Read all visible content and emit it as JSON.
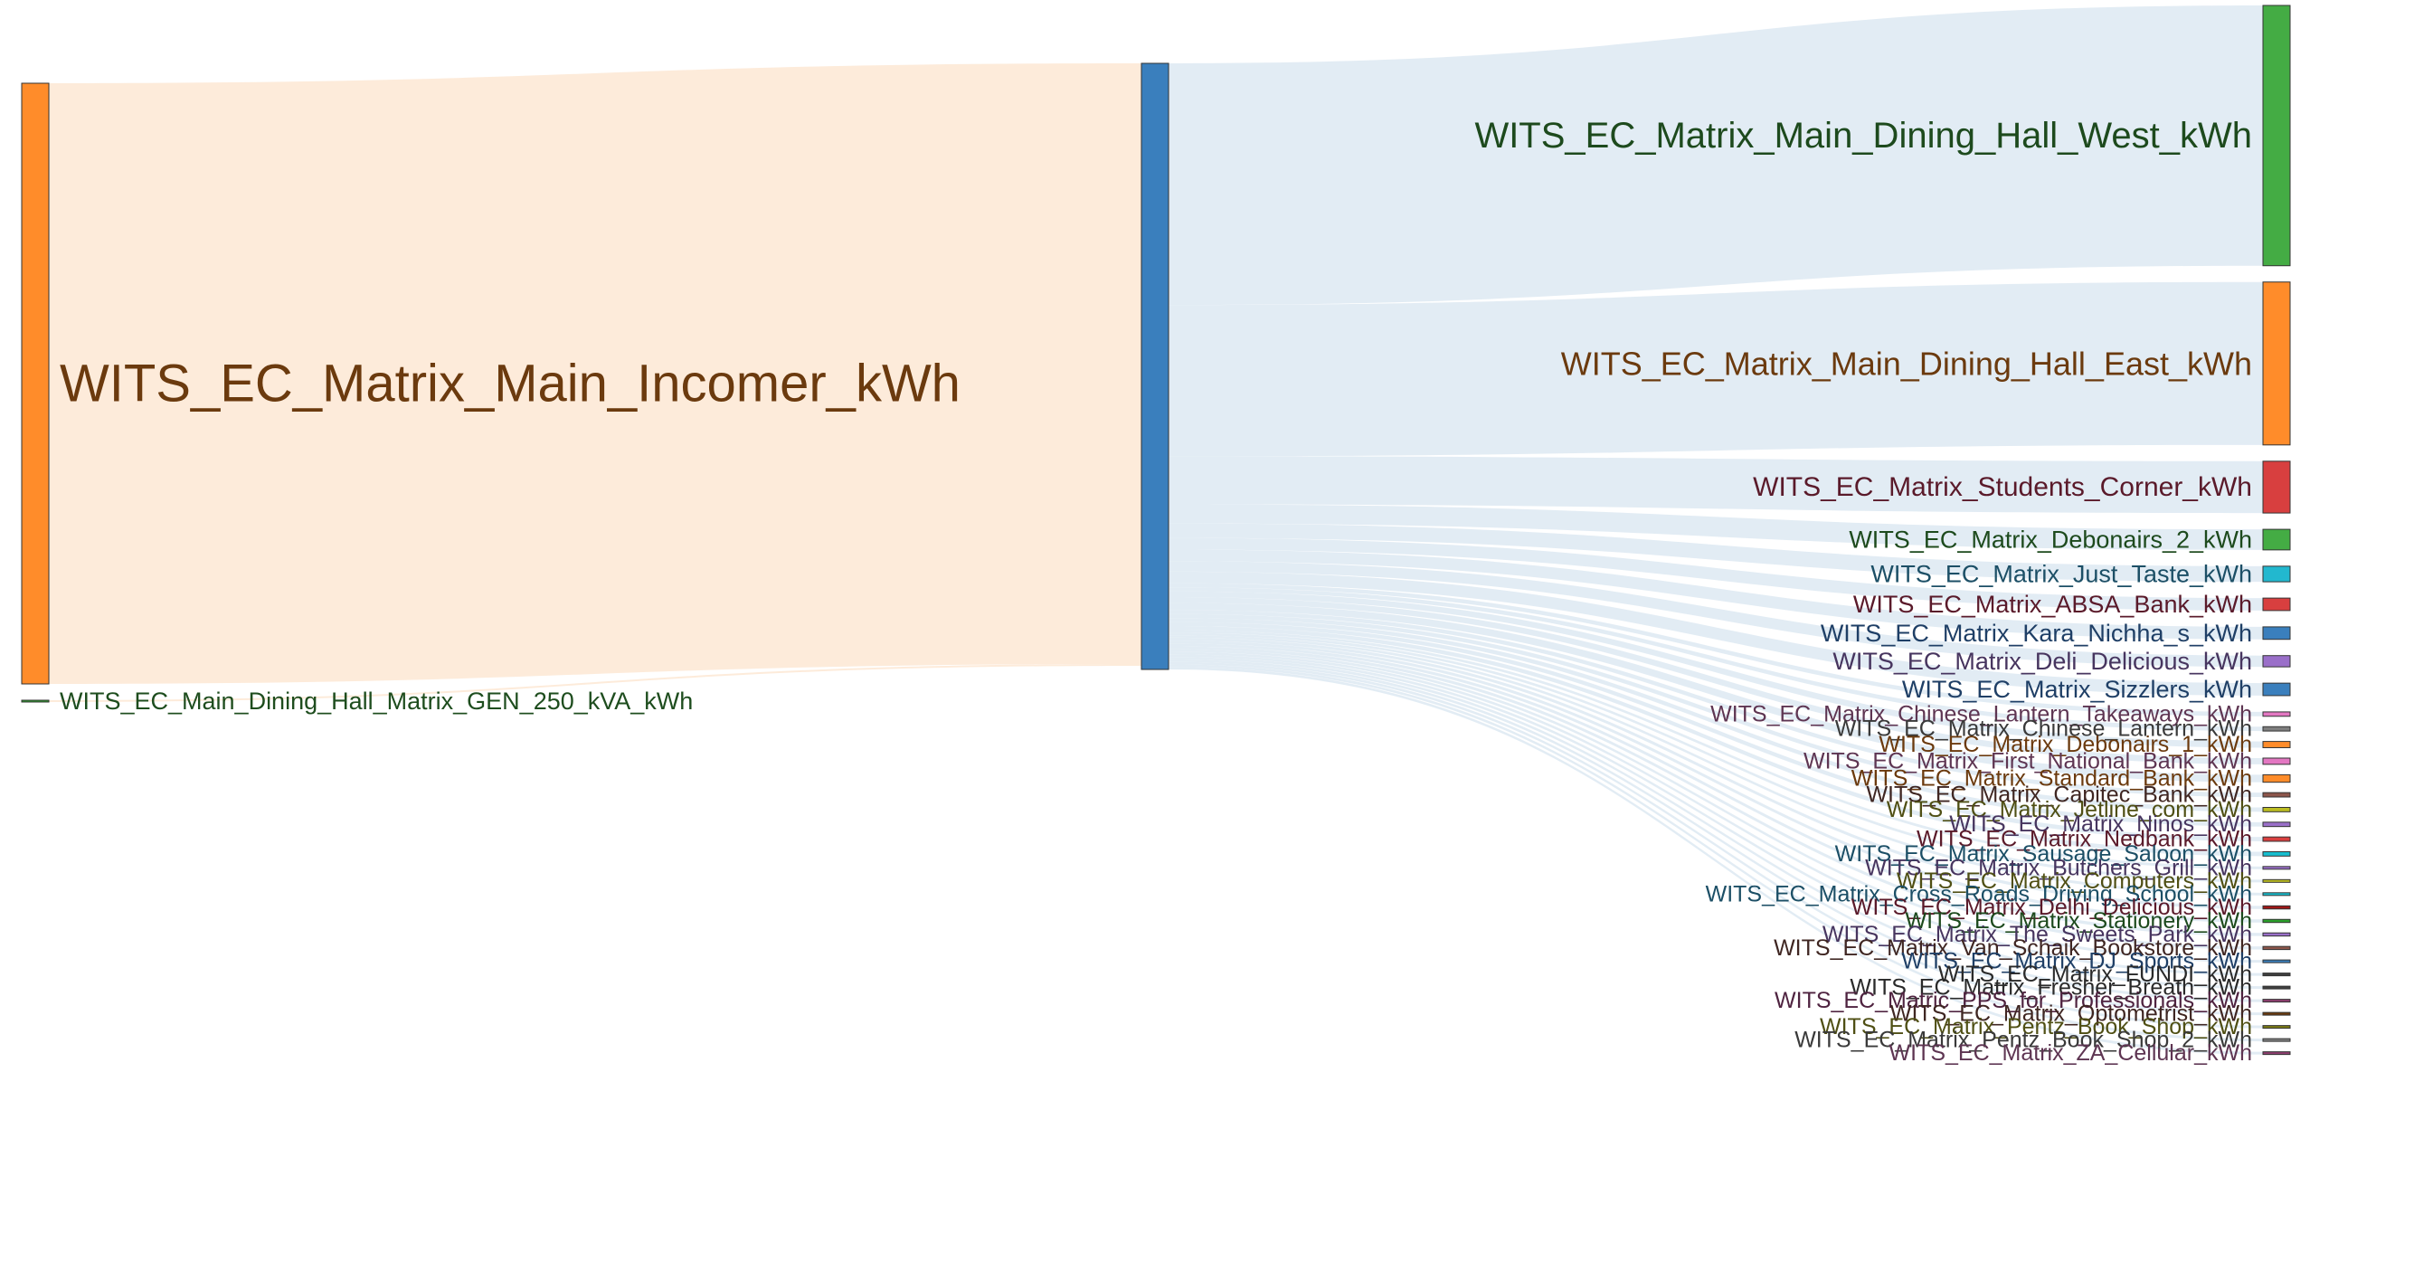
{
  "chart_data": {
    "type": "sankey",
    "sources": [
      {
        "id": "main_incomer",
        "label": "WITS_EC_Matrix_Main_Incomer_kWh",
        "value": 1000,
        "color": "#ff8c2a",
        "text_color": "#6b3a0e"
      },
      {
        "id": "gen_250",
        "label": "WITS_EC_Main_Dining_Hall_Matrix_GEN_250_kVA_kWh",
        "value": 3,
        "color": "#2ca02c",
        "text_color": "#1e4d1e"
      }
    ],
    "hub": {
      "id": "matrix_hub",
      "label": "",
      "color": "#3a7fbd"
    },
    "targets": [
      {
        "label": "WITS_EC_Matrix_Main_Dining_Hall_West_kWh",
        "value": 417,
        "color": "#44ac44",
        "text_color": "#1d4a1d"
      },
      {
        "label": "WITS_EC_Matrix_Main_Dining_Hall_East_kWh",
        "value": 261,
        "color": "#ff8c2a",
        "text_color": "#6b3a0e"
      },
      {
        "label": "WITS_EC_Matrix_Students_Corner_kWh",
        "value": 83,
        "color": "#d83f3f",
        "text_color": "#5a1a2a"
      },
      {
        "label": "WITS_EC_Matrix_Debonairs_2_kWh",
        "value": 33,
        "color": "#44ac44",
        "text_color": "#1d4a1d"
      },
      {
        "label": "WITS_EC_Matrix_Just_Taste_kWh",
        "value": 25,
        "color": "#22b8cf",
        "text_color": "#1c4f66"
      },
      {
        "label": "WITS_EC_Matrix_ABSA_Bank_kWh",
        "value": 20,
        "color": "#d83f3f",
        "text_color": "#5a1a2a"
      },
      {
        "label": "WITS_EC_Matrix_Kara_Nichha_s_kWh",
        "value": 20,
        "color": "#3a7fbd",
        "text_color": "#1f3f66"
      },
      {
        "label": "WITS_EC_Matrix_Deli_Delicious_kWh",
        "value": 18,
        "color": "#9a6fc9",
        "text_color": "#47355f"
      },
      {
        "label": "WITS_EC_Matrix_Sizzlers_kWh",
        "value": 20,
        "color": "#3a7fbd",
        "text_color": "#1f3f66"
      },
      {
        "label": "WITS_EC_Matrix_Chinese_Lantern_Takeaways_kWh",
        "value": 7,
        "color": "#e377c2",
        "text_color": "#5e3552"
      },
      {
        "label": "WITS_EC_Matrix_Chinese_Lantern_kWh",
        "value": 7,
        "color": "#7f7f7f",
        "text_color": "#3a3a3a"
      },
      {
        "label": "WITS_EC_Matrix_Debonairs_1_kWh",
        "value": 10,
        "color": "#ff8c2a",
        "text_color": "#6b3a0e"
      },
      {
        "label": "WITS_EC_Matrix_First_National_Bank_kWh",
        "value": 10,
        "color": "#e377c2",
        "text_color": "#5e3552"
      },
      {
        "label": "WITS_EC_Matrix_Standard_Bank_kWh",
        "value": 12,
        "color": "#ff8c2a",
        "text_color": "#6b3a0e"
      },
      {
        "label": "WITS_EC_Matrix_Capitec_Bank_kWh",
        "value": 7,
        "color": "#8c564b",
        "text_color": "#3f2622"
      },
      {
        "label": "WITS_EC_Matrix_Jetline_com_kWh",
        "value": 7,
        "color": "#bcbd22",
        "text_color": "#4f4f14"
      },
      {
        "label": "WITS_EC_Matrix_Ninos_kWh",
        "value": 7,
        "color": "#9a6fc9",
        "text_color": "#47355f"
      },
      {
        "label": "WITS_EC_Matrix_Nedbank_kWh",
        "value": 7,
        "color": "#d83f3f",
        "text_color": "#5a1a2a"
      },
      {
        "label": "WITS_EC_Matrix_Sausage_Saloon_kWh",
        "value": 7,
        "color": "#17becf",
        "text_color": "#1c4f66"
      },
      {
        "label": "WITS_EC_Matrix_Butchers_Grill_kWh",
        "value": 4,
        "color": "#9a6fc9",
        "text_color": "#47355f"
      },
      {
        "label": "WITS_EC_Matrix_Computers_kWh",
        "value": 4,
        "color": "#bcbd22",
        "text_color": "#4f4f14"
      },
      {
        "label": "WITS_EC_Matrix_Cross_Roads_Driving_School_kWh",
        "value": 3,
        "color": "#17becf",
        "text_color": "#1c4f66"
      },
      {
        "label": "WITS_EC_Matrix_Delhi_Delicious_kWh",
        "value": 5,
        "color": "#a01818",
        "text_color": "#5a1a2a"
      },
      {
        "label": "WITS_EC_Matrix_Stationery_kWh",
        "value": 5,
        "color": "#2ca02c",
        "text_color": "#1d4a1d"
      },
      {
        "label": "WITS_EC_Matrix_The_Sweets_Park_kWh",
        "value": 5,
        "color": "#9a6fc9",
        "text_color": "#47355f"
      },
      {
        "label": "WITS_EC_Matrix_Van_Schaik_Bookstore_kWh",
        "value": 5,
        "color": "#8c564b",
        "text_color": "#3f2622"
      },
      {
        "label": "WITS_EC_Matrix_DJ_Sports_kWh",
        "value": 3,
        "color": "#3a7fbd",
        "text_color": "#1f3f66"
      },
      {
        "label": "WITS_EC_Matrix_FUNDI_kWh",
        "value": 3,
        "color": "#3f3f3f",
        "text_color": "#2a2a2a"
      },
      {
        "label": "WITS_EC_Matrix_Fresher_Breath_kWh",
        "value": 3,
        "color": "#3f3f3f",
        "text_color": "#2a2a2a"
      },
      {
        "label": "WITS_EC_Matric_PPS_for_Professionals_kWh",
        "value": 3,
        "color": "#8e3f70",
        "text_color": "#4f2340"
      },
      {
        "label": "WITS_EC_Matrix_Optometrist_kWh",
        "value": 3,
        "color": "#6b3a0e",
        "text_color": "#3f2622"
      },
      {
        "label": "WITS_EC_Matrix_Pentz_Book_Shop_kWh",
        "value": 3,
        "color": "#7a7a14",
        "text_color": "#4f4f14"
      },
      {
        "label": "WITS_EC_Matrix_Pentz_Book_Shop_2_kWh",
        "value": 2,
        "color": "#7f7f7f",
        "text_color": "#3a3a3a"
      },
      {
        "label": "WITS_EC_Matrix_ZA_Cellular_kWh",
        "value": 2,
        "color": "#8e3f70",
        "text_color": "#5e3552"
      }
    ],
    "link_colors": {
      "source_links": "#fde9d6",
      "target_links": "#dde9f2"
    }
  }
}
